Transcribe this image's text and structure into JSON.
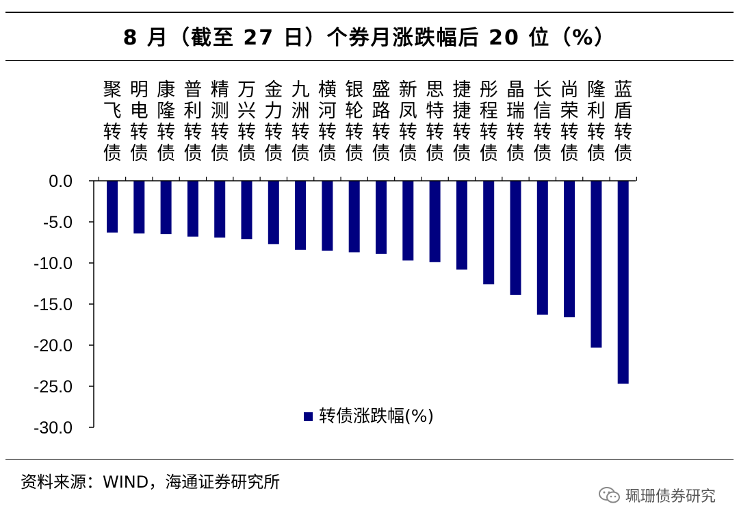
{
  "title": "8 月（截至 27 日）个券月涨跌幅后 20 位（%）",
  "source": "资料来源：WIND，海通证券研究所",
  "watermark": "珮珊债券研究",
  "colors": {
    "bar": "#000080",
    "axis": "#000000"
  },
  "chart_data": {
    "type": "bar",
    "title": "8 月（截至 27 日）个券月涨跌幅后 20 位（%）",
    "categories": [
      "聚飞转债",
      "明电转债",
      "康隆转债",
      "普利转债",
      "精测转债",
      "万兴转债",
      "金力转债",
      "九洲转债",
      "横河转债",
      "银轮转债",
      "盛路转债",
      "新凤转债",
      "思特转债",
      "捷捷转债",
      "彤程转债",
      "晶瑞转债",
      "长信转债",
      "尚荣转债",
      "隆利转债",
      "蓝盾转债"
    ],
    "series": [
      {
        "name": "转债涨跌幅(%)",
        "values": [
          -6.3,
          -6.4,
          -6.5,
          -6.8,
          -6.9,
          -7.1,
          -7.7,
          -8.4,
          -8.5,
          -8.7,
          -8.9,
          -9.7,
          -9.9,
          -10.8,
          -12.6,
          -13.9,
          -16.3,
          -16.6,
          -20.3,
          -24.7
        ]
      }
    ],
    "yticks": [
      "0.0",
      "-5.0",
      "-10.0",
      "-15.0",
      "-20.0",
      "-25.0",
      "-30.0"
    ],
    "ylim": [
      -30,
      0
    ],
    "legend_position": "bottom-center",
    "xlabel": "",
    "ylabel": ""
  }
}
